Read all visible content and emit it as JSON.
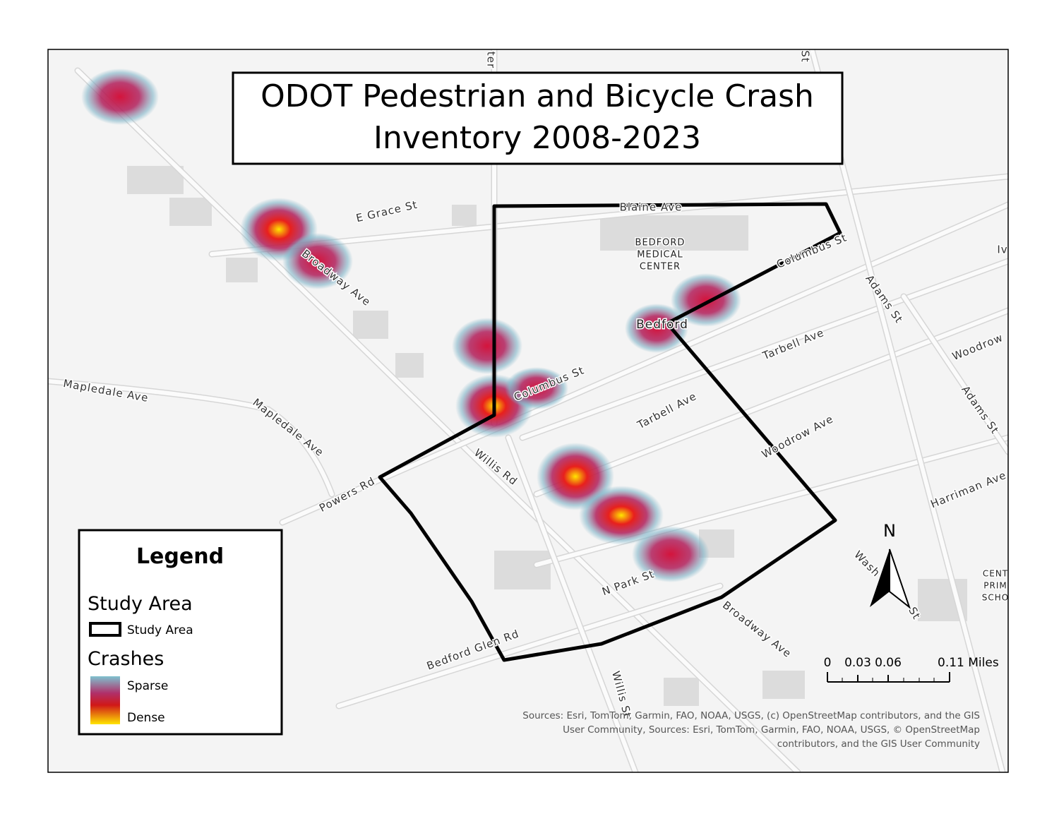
{
  "title_lines": [
    "ODOT Pedestrian and Bicycle Crash",
    "Inventory 2008-2023"
  ],
  "street_labels": [
    "E Grace St",
    "Broadway Ave",
    "Blaine Ave",
    "Columbus St",
    "Adams St",
    "Tarbell Ave",
    "Woodrow",
    "Mapledale Ave",
    "Mapledale Ave",
    "Columbus St",
    "Tarbell Ave",
    "Adams St",
    "Woodrow Ave",
    "Willis Rd",
    "Powers Rd",
    "Harriman Ave",
    "N Park St",
    "Bedford Glen Rd",
    "Broadway Ave",
    "Willis St",
    "Wash",
    "St",
    "ter",
    "St",
    "Iv"
  ],
  "place_labels": [
    "BEDFORD",
    "MEDICAL",
    "CENTER",
    "Bedford",
    "CENT",
    "PRIM",
    "SCHO"
  ],
  "legend": {
    "title": "Legend",
    "groups": [
      {
        "title": "Study Area",
        "items": [
          "Study Area"
        ]
      },
      {
        "title": "Crashes",
        "items": [
          "Sparse",
          "Dense"
        ]
      }
    ]
  },
  "north_label": "N",
  "scale_bar": {
    "labels": [
      "0",
      "0.03",
      "0.06",
      "0.11 Miles"
    ]
  },
  "sources": [
    "Sources:  Esri, TomTom, Garmin, FAO, NOAA, USGS, (c) OpenStreetMap contributors, and the GIS",
    "User Community, Sources: Esri, TomTom, Garmin, FAO, NOAA, USGS, © OpenStreetMap",
    "contributors, and the GIS User Community"
  ]
}
